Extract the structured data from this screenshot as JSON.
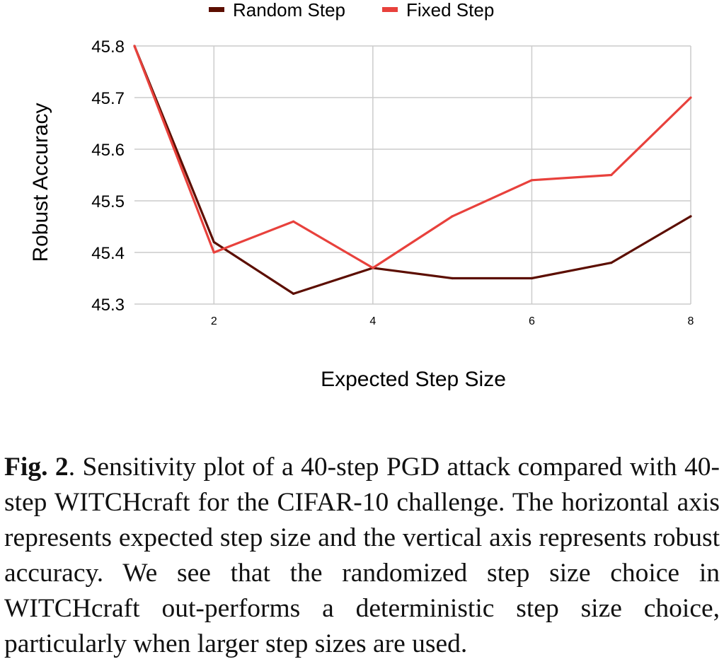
{
  "chart_data": {
    "type": "line",
    "xlabel": "Expected Step Size",
    "ylabel": "Robust Accuracy",
    "x": [
      1,
      2,
      3,
      4,
      5,
      6,
      7,
      8
    ],
    "xticks": [
      "2",
      "4",
      "6",
      "8"
    ],
    "xlim": [
      1,
      8
    ],
    "yticks": [
      "45.3",
      "45.4",
      "45.5",
      "45.6",
      "45.7",
      "45.8"
    ],
    "ylim": [
      45.3,
      45.8
    ],
    "grid": true,
    "legend": "top",
    "series": [
      {
        "name": "Random Step",
        "color": "#5c0e00",
        "values": [
          45.8,
          45.42,
          45.32,
          45.37,
          45.35,
          45.35,
          45.38,
          45.47
        ]
      },
      {
        "name": "Fixed Step",
        "color": "#e8413c",
        "values": [
          45.8,
          45.4,
          45.46,
          45.37,
          45.47,
          45.54,
          45.55,
          45.7
        ]
      }
    ]
  },
  "caption": {
    "label": "Fig. 2",
    "text": ".  Sensitivity plot of a 40-step PGD attack compared with 40-step WITCHcraft for the CIFAR-10 challenge.  The horizontal axis represents expected step size and the vertical axis represents robust accuracy.  We see that the randomized step size choice in WITCHcraft out-performs a deterministic step size choice, particularly when larger step sizes are used."
  }
}
